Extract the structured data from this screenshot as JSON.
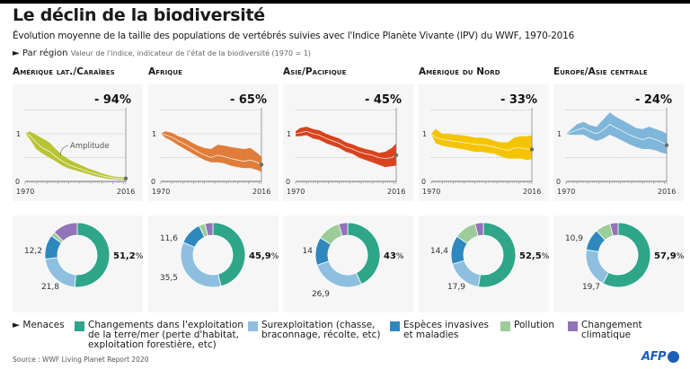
{
  "header": {
    "title": "Le déclin de la biodiversité",
    "subtitle": "Évolution moyenne de la taille des populations de vertébrés suivies avec l'Indice Planète Vivante (IPV) du WWF, 1970-2016",
    "by_region_label": "► Par région",
    "by_region_note": "Valeur de l'indice, indicateur de l'état de la biodiversité (1970 = 1)"
  },
  "chart_data": [
    {
      "type": "area",
      "region": "Amérique lat./Caraïbes",
      "decline_label": "- 94%",
      "color": "#b8c434",
      "x": [
        1970,
        1972,
        1975,
        1978,
        1981,
        1984,
        1987,
        1990,
        1993,
        1996,
        1999,
        2002,
        2005,
        2008,
        2011,
        2014,
        2016
      ],
      "index": [
        1.0,
        0.97,
        0.82,
        0.7,
        0.63,
        0.52,
        0.42,
        0.35,
        0.3,
        0.25,
        0.2,
        0.16,
        0.12,
        0.09,
        0.07,
        0.06,
        0.06
      ],
      "upper": [
        1.0,
        1.05,
        0.98,
        0.9,
        0.82,
        0.68,
        0.55,
        0.46,
        0.39,
        0.33,
        0.27,
        0.22,
        0.17,
        0.13,
        0.1,
        0.09,
        0.09
      ],
      "lower": [
        1.0,
        0.9,
        0.68,
        0.58,
        0.5,
        0.42,
        0.33,
        0.27,
        0.23,
        0.19,
        0.15,
        0.11,
        0.08,
        0.05,
        0.04,
        0.03,
        0.03
      ],
      "annotation": "Amplitude",
      "xlim": [
        1970,
        2016
      ],
      "ylim": [
        0,
        1.5
      ],
      "ytick_labels": [
        "0",
        "1"
      ],
      "xtick_labels": [
        "1970",
        "2016"
      ],
      "threats": {
        "land_sea_use": 51.2,
        "overexploitation": 21.8,
        "invasive_species": 12.2,
        "pollution": 2.2,
        "climate_change": 12.6
      },
      "threat_labels": {
        "main": "51,2%",
        "overexploitation": "21,8",
        "invasive_species": "12,2"
      }
    },
    {
      "type": "area",
      "region": "Afrique",
      "decline_label": "- 65%",
      "color": "#e07d3a",
      "x": [
        1970,
        1972,
        1975,
        1978,
        1981,
        1984,
        1987,
        1990,
        1993,
        1996,
        1999,
        2002,
        2005,
        2008,
        2011,
        2014,
        2016
      ],
      "index": [
        1.0,
        0.98,
        0.93,
        0.85,
        0.78,
        0.7,
        0.62,
        0.55,
        0.5,
        0.55,
        0.52,
        0.48,
        0.45,
        0.42,
        0.45,
        0.4,
        0.35
      ],
      "upper": [
        1.0,
        1.05,
        1.02,
        0.95,
        0.9,
        0.82,
        0.75,
        0.7,
        0.68,
        0.77,
        0.75,
        0.72,
        0.7,
        0.68,
        0.7,
        0.6,
        0.52
      ],
      "lower": [
        1.0,
        0.92,
        0.85,
        0.76,
        0.68,
        0.6,
        0.52,
        0.45,
        0.4,
        0.4,
        0.38,
        0.33,
        0.3,
        0.28,
        0.28,
        0.24,
        0.2
      ],
      "xlim": [
        1970,
        2016
      ],
      "ylim": [
        0,
        1.5
      ],
      "ytick_labels": [
        "0",
        "1"
      ],
      "xtick_labels": [
        "1970",
        "2016"
      ],
      "threats": {
        "land_sea_use": 45.9,
        "overexploitation": 35.5,
        "invasive_species": 11.6,
        "pollution": 3.0,
        "climate_change": 4.0
      },
      "threat_labels": {
        "main": "45,9%",
        "overexploitation": "35,5",
        "invasive_species": "11,6"
      }
    },
    {
      "type": "area",
      "region": "Asie/Pacifique",
      "decline_label": "- 45%",
      "color": "#d9431e",
      "x": [
        1970,
        1972,
        1975,
        1978,
        1981,
        1984,
        1987,
        1990,
        1993,
        1996,
        1999,
        2002,
        2005,
        2008,
        2011,
        2014,
        2016
      ],
      "index": [
        1.0,
        1.02,
        1.05,
        1.0,
        0.97,
        0.9,
        0.85,
        0.8,
        0.72,
        0.68,
        0.62,
        0.58,
        0.55,
        0.5,
        0.48,
        0.5,
        0.55
      ],
      "upper": [
        1.05,
        1.12,
        1.15,
        1.1,
        1.07,
        1.0,
        0.95,
        0.9,
        0.82,
        0.78,
        0.72,
        0.68,
        0.65,
        0.6,
        0.62,
        0.7,
        0.8
      ],
      "lower": [
        0.95,
        0.95,
        0.97,
        0.9,
        0.87,
        0.8,
        0.75,
        0.7,
        0.62,
        0.58,
        0.5,
        0.45,
        0.4,
        0.35,
        0.3,
        0.32,
        0.33
      ],
      "xlim": [
        1970,
        2016
      ],
      "ylim": [
        0,
        1.5
      ],
      "ytick_labels": [
        "0",
        "1"
      ],
      "xtick_labels": [
        "1970",
        "2016"
      ],
      "threats": {
        "land_sea_use": 43.0,
        "overexploitation": 26.9,
        "invasive_species": 14.0,
        "pollution": 11.6,
        "climate_change": 4.5
      },
      "threat_labels": {
        "main": "43%",
        "overexploitation": "26,9",
        "invasive_species": "14"
      }
    },
    {
      "type": "area",
      "region": "Amérique du Nord",
      "decline_label": "- 33%",
      "color": "#f5c400",
      "x": [
        1970,
        1972,
        1975,
        1978,
        1981,
        1984,
        1987,
        1990,
        1993,
        1996,
        1999,
        2002,
        2005,
        2008,
        2011,
        2014,
        2016
      ],
      "index": [
        1.0,
        0.92,
        0.88,
        0.86,
        0.84,
        0.82,
        0.8,
        0.78,
        0.77,
        0.75,
        0.72,
        0.68,
        0.65,
        0.7,
        0.7,
        0.68,
        0.67
      ],
      "upper": [
        1.0,
        1.1,
        1.0,
        1.0,
        0.98,
        0.97,
        0.95,
        0.92,
        0.92,
        0.9,
        0.85,
        0.82,
        0.82,
        0.92,
        0.95,
        0.95,
        0.97
      ],
      "lower": [
        1.0,
        0.8,
        0.75,
        0.72,
        0.7,
        0.68,
        0.65,
        0.62,
        0.62,
        0.6,
        0.58,
        0.52,
        0.48,
        0.48,
        0.48,
        0.45,
        0.47
      ],
      "xlim": [
        1970,
        2016
      ],
      "ylim": [
        0,
        1.5
      ],
      "ytick_labels": [
        "0",
        "1"
      ],
      "xtick_labels": [
        "1970",
        "2016"
      ],
      "threats": {
        "land_sea_use": 52.5,
        "overexploitation": 17.9,
        "invasive_species": 14.4,
        "pollution": 11.0,
        "climate_change": 4.2
      },
      "threat_labels": {
        "main": "52,5%",
        "overexploitation": "17,9",
        "invasive_species": "14,4"
      }
    },
    {
      "type": "area",
      "region": "Europe/Asie centrale",
      "decline_label": "- 24%",
      "color": "#7fb6d9",
      "x": [
        1970,
        1972,
        1975,
        1978,
        1981,
        1984,
        1987,
        1990,
        1993,
        1996,
        1999,
        2002,
        2005,
        2008,
        2011,
        2014,
        2016
      ],
      "index": [
        1.0,
        1.03,
        1.08,
        1.12,
        1.05,
        1.0,
        1.08,
        1.2,
        1.12,
        1.05,
        0.98,
        0.92,
        0.88,
        0.92,
        0.88,
        0.82,
        0.76
      ],
      "upper": [
        1.0,
        1.08,
        1.2,
        1.25,
        1.18,
        1.15,
        1.3,
        1.45,
        1.35,
        1.28,
        1.2,
        1.12,
        1.1,
        1.15,
        1.1,
        1.05,
        1.0
      ],
      "lower": [
        1.0,
        0.98,
        0.98,
        0.98,
        0.9,
        0.85,
        0.9,
        0.98,
        0.92,
        0.85,
        0.78,
        0.72,
        0.68,
        0.68,
        0.65,
        0.6,
        0.58
      ],
      "xlim": [
        1970,
        2016
      ],
      "ylim": [
        0,
        1.5
      ],
      "ytick_labels": [
        "0",
        "1"
      ],
      "xtick_labels": [
        "1970",
        "2016"
      ],
      "threats": {
        "land_sea_use": 57.9,
        "overexploitation": 19.7,
        "invasive_species": 10.9,
        "pollution": 7.4,
        "climate_change": 4.1
      },
      "threat_labels": {
        "main": "57,9%",
        "overexploitation": "19,7",
        "invasive_species": "10,9"
      }
    }
  ],
  "threat_colors": {
    "land_sea_use": "#2fa58a",
    "overexploitation": "#8fbfde",
    "invasive_species": "#2e88bd",
    "pollution": "#9ccc98",
    "climate_change": "#9274b8"
  },
  "legend": {
    "label": "► Menaces",
    "items": [
      {
        "key": "land_sea_use",
        "label": "Changements dans l'exploitation\nde la terre/mer (perte d'habitat,\nexploitation forestière, etc)"
      },
      {
        "key": "overexploitation",
        "label": "Surexploitation (chasse,\nbraconnage, récolte, etc)"
      },
      {
        "key": "invasive_species",
        "label": "Espèces invasives\net maladies"
      },
      {
        "key": "pollution",
        "label": "Pollution"
      },
      {
        "key": "climate_change",
        "label": "Changement\nclimatique"
      }
    ]
  },
  "footer": {
    "source": "Source : WWF Living Planet Report 2020",
    "logo": "AFP"
  }
}
